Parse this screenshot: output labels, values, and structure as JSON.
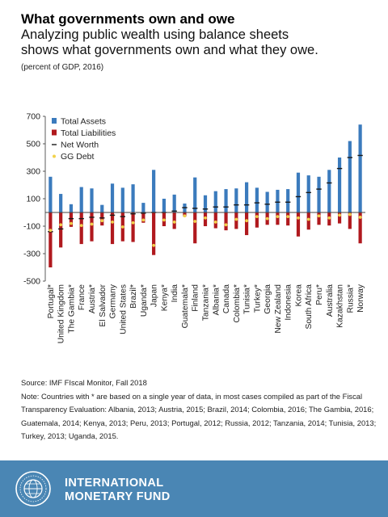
{
  "header": {
    "title": "What governments own and owe",
    "subtitle_line1": "Analyzing public wealth using balance sheets",
    "subtitle_line2": "shows what governments own and what they owe.",
    "units": "(percent of GDP, 2016)"
  },
  "colors": {
    "assets": "#3b7bbd",
    "liabilities": "#b0191e",
    "net_worth": "#1a1a1a",
    "gg_debt": "#f2d24b"
  },
  "chart_data": {
    "type": "bar",
    "categories": [
      "Portugal*",
      "United Kingdom",
      "The Gambia*",
      "France",
      "Austria*",
      "El Salvador",
      "Germany",
      "United States",
      "Brazil*",
      "Uganda*",
      "Japan",
      "Kenya*",
      "India",
      "Guatemala*",
      "Finland",
      "Tanzania*",
      "Albania*",
      "Canada",
      "Colombia*",
      "Tunisia*",
      "Turkey*",
      "Georgia",
      "New Zealand",
      "Indonesia",
      "Korea",
      "South Africa",
      "Peru*",
      "Australia",
      "Kazakhstan",
      "Russia*",
      "Norway"
    ],
    "series": [
      {
        "name": "Total Assets",
        "values": [
          260,
          135,
          60,
          185,
          175,
          55,
          210,
          180,
          205,
          70,
          310,
          100,
          130,
          65,
          255,
          125,
          155,
          170,
          175,
          220,
          180,
          150,
          165,
          170,
          290,
          270,
          260,
          310,
          400,
          520,
          640
        ]
      },
      {
        "name": "Total Liabilities",
        "values": [
          -400,
          -255,
          -105,
          -230,
          -210,
          -95,
          -230,
          -210,
          -215,
          -75,
          -310,
          -100,
          -120,
          -30,
          -225,
          -100,
          -115,
          -130,
          -120,
          -165,
          -110,
          -90,
          -90,
          -95,
          -175,
          -125,
          -90,
          -95,
          -80,
          -120,
          -225
        ]
      },
      {
        "name": "Net Worth",
        "values": [
          -140,
          -120,
          -45,
          -45,
          -35,
          -40,
          -20,
          -30,
          -10,
          -5,
          0,
          0,
          10,
          35,
          30,
          25,
          40,
          40,
          55,
          55,
          70,
          60,
          75,
          75,
          115,
          145,
          170,
          215,
          320,
          400,
          415
        ]
      },
      {
        "name": "GG Debt",
        "values": [
          -130,
          -90,
          -80,
          -95,
          -85,
          -60,
          -70,
          -105,
          -75,
          -55,
          -240,
          -55,
          -70,
          -25,
          -65,
          -40,
          -70,
          -90,
          -50,
          -60,
          -30,
          -45,
          -30,
          -30,
          -40,
          -50,
          -25,
          -40,
          -20,
          -15,
          -35
        ]
      }
    ],
    "yticks": [
      700,
      500,
      300,
      100,
      -100,
      -300,
      -500
    ],
    "ytick_labels": [
      "700",
      "500",
      "300",
      "100",
      "-100",
      "-300",
      "-500"
    ],
    "ylim": [
      -500,
      700
    ],
    "xlabel": "",
    "ylabel": "",
    "legend_position": "top-left",
    "grid": false
  },
  "notes": {
    "source": "Source: IMF FIscal Monitor, Fall 2018",
    "note": "Note: Countries with * are based on a single year of data, in most cases compiled as part of the Fiscal Transparency Evaluation: Albania, 2013; Austria, 2015; Brazil, 2014; Colombia, 2016; The Gambia, 2016; Guatemala, 2014; Kenya, 2013; Peru, 2013; Portugal, 2012; Russia, 2012; Tanzania, 2014; Tunisia, 2013; Turkey, 2013; Uganda, 2015."
  },
  "footer": {
    "org_line1": "INTERNATIONAL",
    "org_line2": "MONETARY FUND"
  }
}
